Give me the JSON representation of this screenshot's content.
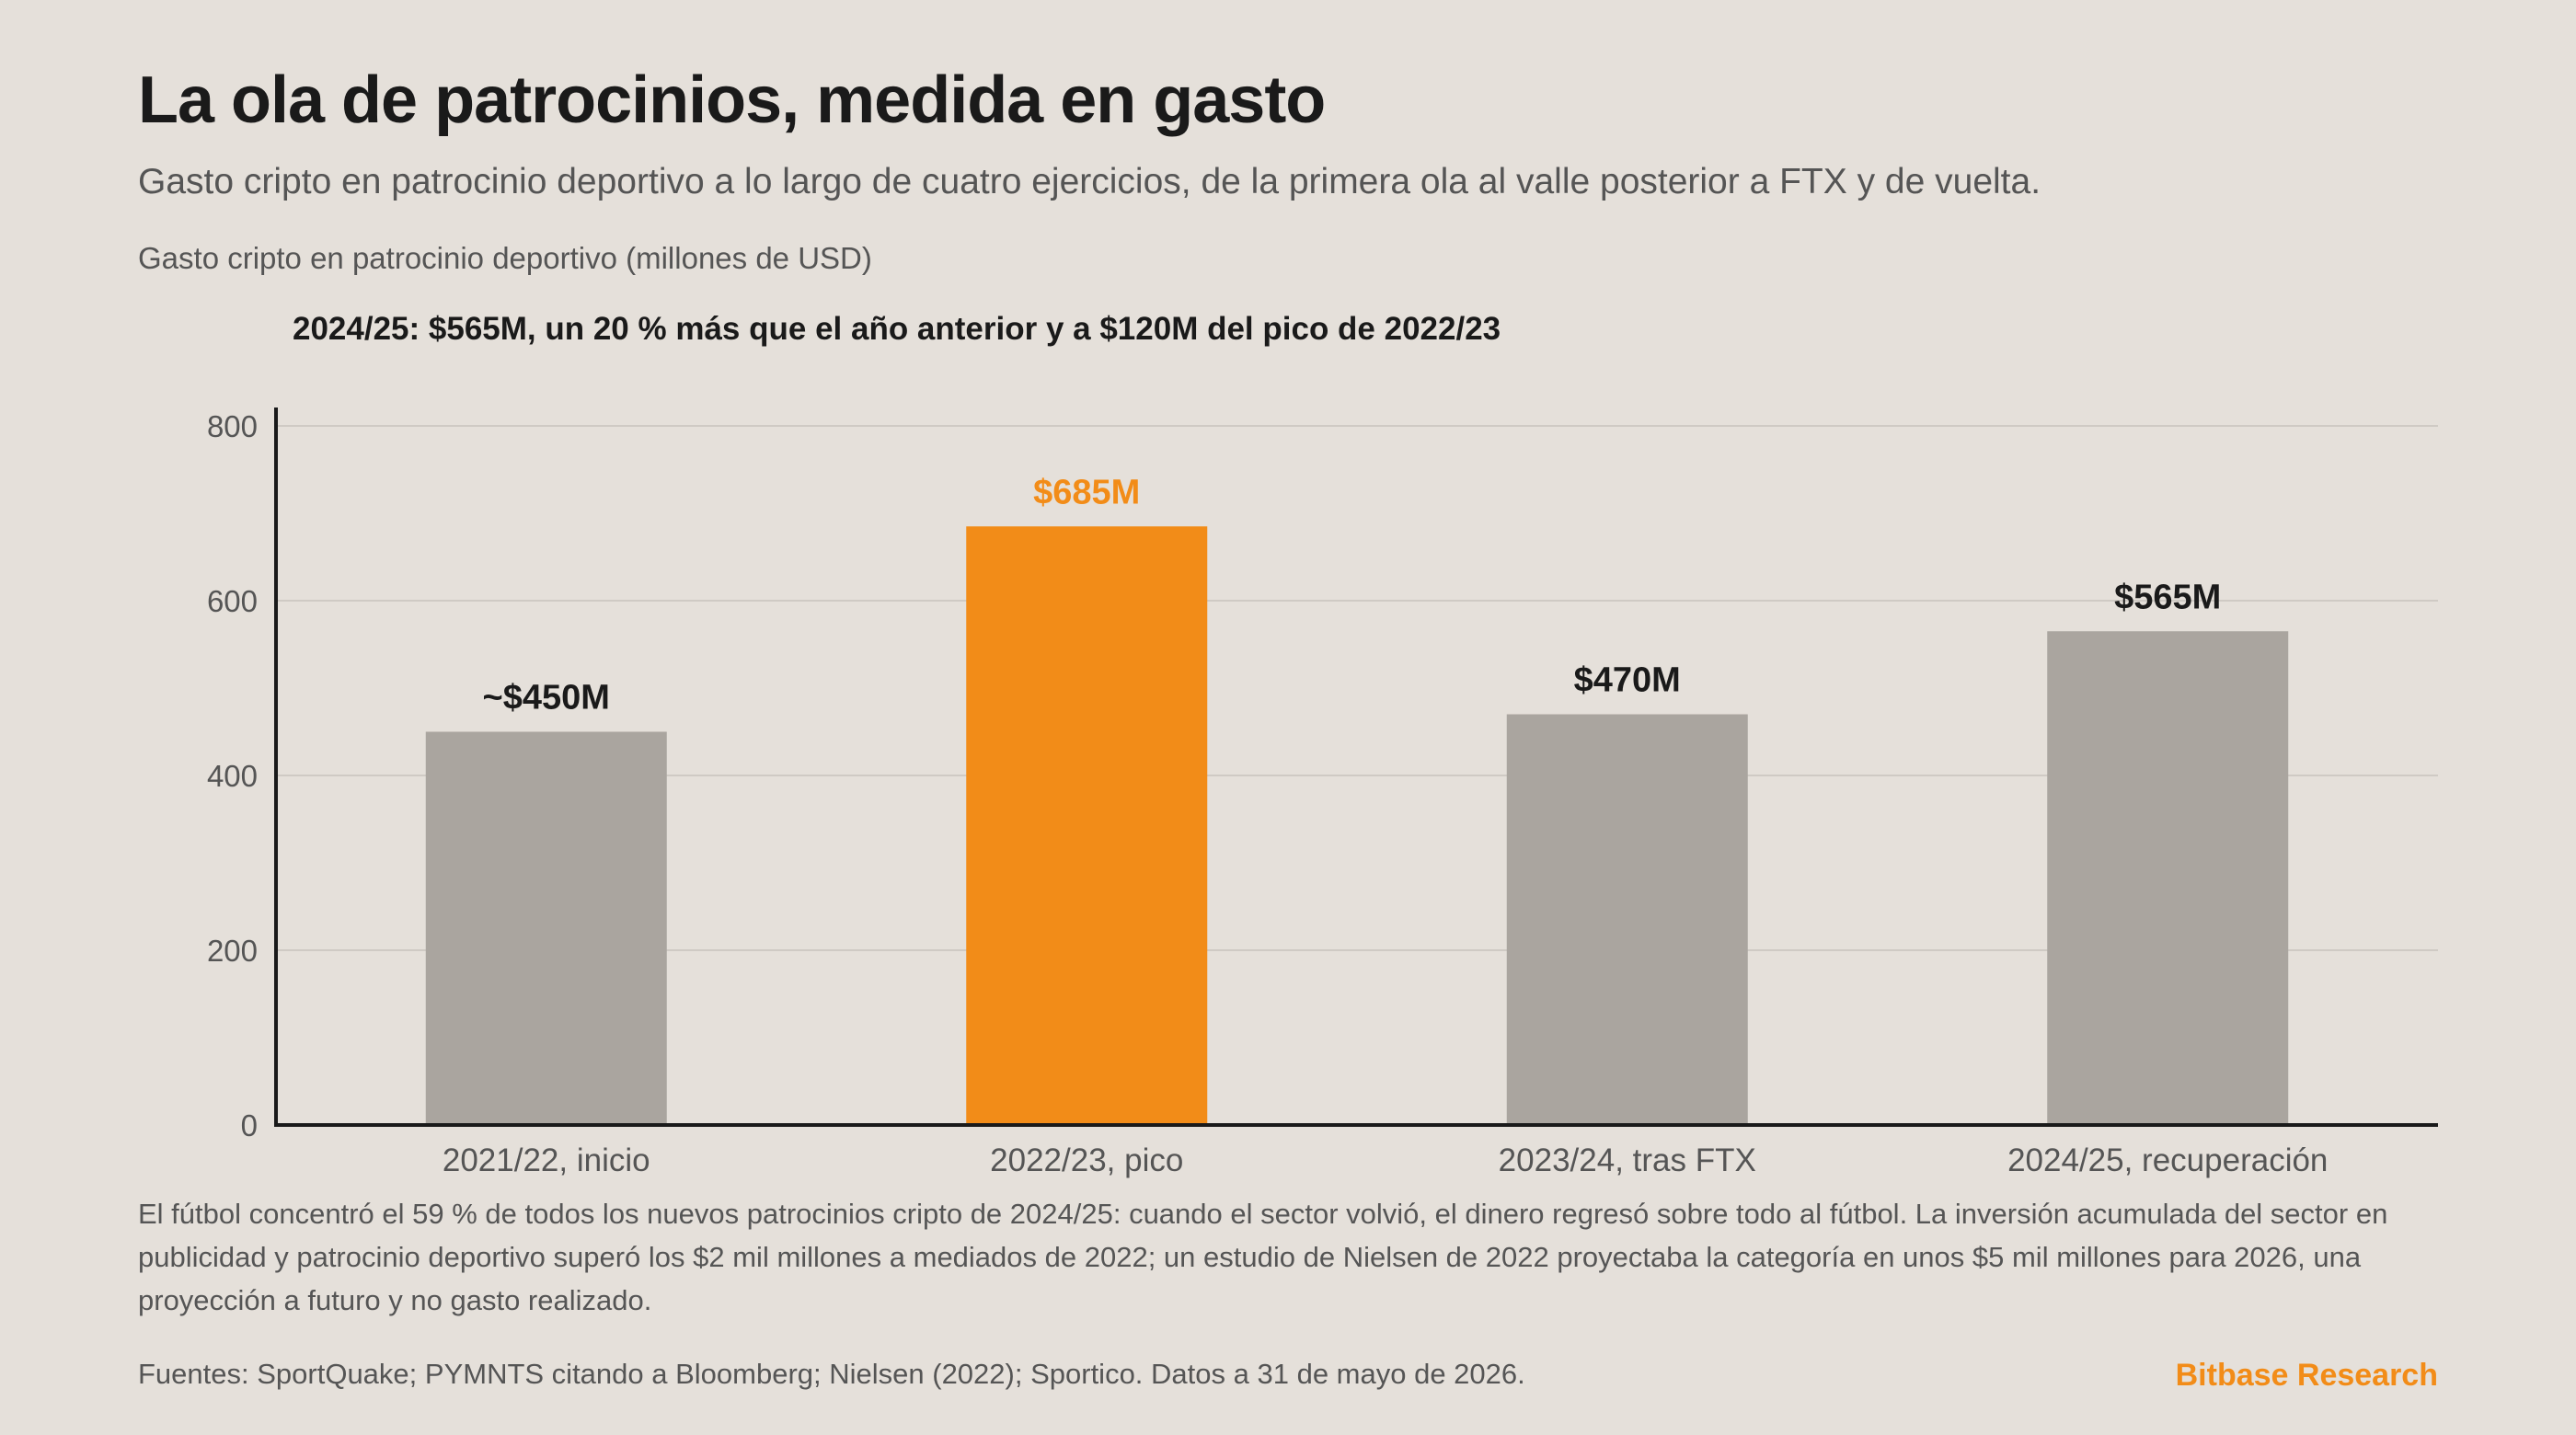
{
  "header": {
    "title": "La ola de patrocinios, medida en gasto",
    "subtitle": "Gasto cripto en patrocinio deportivo a lo largo de cuatro ejercicios, de la primera ola al valle posterior a FTX y de vuelta."
  },
  "chart_data": {
    "type": "bar",
    "ylabel": "Gasto cripto en patrocinio deportivo (millones de USD)",
    "annotation": "2024/25: $565M, un 20 % más que el año anterior y a $120M del pico de 2022/23",
    "categories": [
      "2021/22, inicio",
      "2022/23, pico",
      "2023/24, tras FTX",
      "2024/25, recuperación"
    ],
    "values": [
      450,
      685,
      470,
      565
    ],
    "value_labels": [
      "~$450M",
      "$685M",
      "$470M",
      "$565M"
    ],
    "highlight_index": 1,
    "ylim": [
      0,
      800
    ],
    "yticks": [
      0,
      200,
      400,
      600,
      800
    ],
    "grid": true,
    "colors": {
      "bar": "#aaa59f",
      "highlight": "#f28c18",
      "grid": "#cfcac4",
      "axis": "#1a1a1a",
      "label": "#1a1a1a",
      "tick": "#555555"
    }
  },
  "footnote": "El fútbol concentró el 59 % de todos los nuevos patrocinios cripto de 2024/25: cuando el sector volvió, el dinero regresó sobre todo al fútbol. La inversión acumulada del sector en publicidad y patrocinio deportivo superó los $2 mil millones a mediados de 2022; un estudio de Nielsen de 2022 proyectaba la categoría en unos $5 mil millones para 2026, una proyección a futuro y no gasto realizado.",
  "sources": "Fuentes: SportQuake; PYMNTS citando a Bloomberg; Nielsen (2022); Sportico. Datos a 31 de mayo de 2026.",
  "brand": {
    "name": "Bitbase Research",
    "color": "#f28c18"
  }
}
